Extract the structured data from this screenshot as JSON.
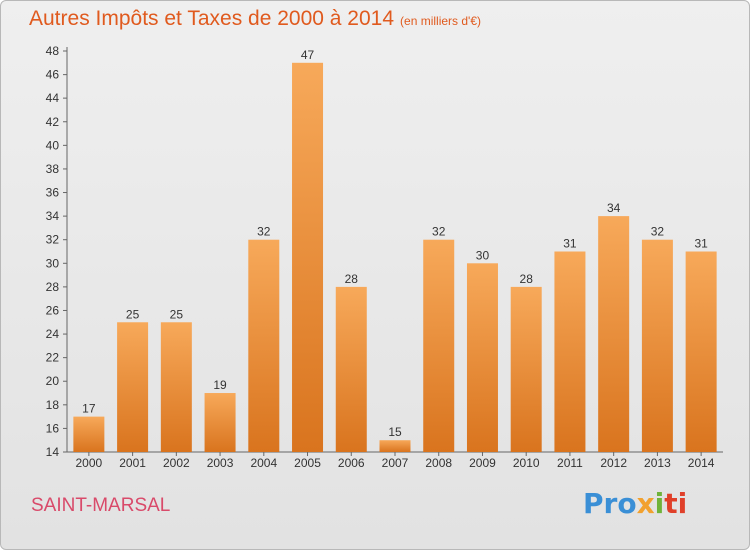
{
  "header": {
    "title": "Autres Impôts et Taxes de 2000 à 2014",
    "subtitle": "(en milliers d'€)"
  },
  "footer": {
    "location": "SAINT-MARSAL",
    "logo_parts": [
      "Pro",
      "x",
      "i",
      "ti"
    ]
  },
  "colors": {
    "bar_light": "#f7a95a",
    "bar_dark": "#d9741e",
    "title": "#e05a1e",
    "location": "#d94a6a"
  },
  "chart_data": {
    "type": "bar",
    "title": "Autres Impôts et Taxes de 2000 à 2014",
    "subtitle": "(en milliers d'€)",
    "categories": [
      "2000",
      "2001",
      "2002",
      "2003",
      "2004",
      "2005",
      "2006",
      "2007",
      "2008",
      "2009",
      "2010",
      "2011",
      "2012",
      "2013",
      "2014"
    ],
    "values": [
      17,
      25,
      25,
      19,
      32,
      47,
      28,
      15,
      32,
      30,
      28,
      31,
      34,
      32,
      31
    ],
    "ylim": [
      14,
      48
    ],
    "yticks": [
      14,
      16,
      18,
      20,
      22,
      24,
      26,
      28,
      30,
      32,
      34,
      36,
      38,
      40,
      42,
      44,
      46,
      48
    ],
    "grid": false,
    "data_labels": true,
    "legend": "none"
  }
}
